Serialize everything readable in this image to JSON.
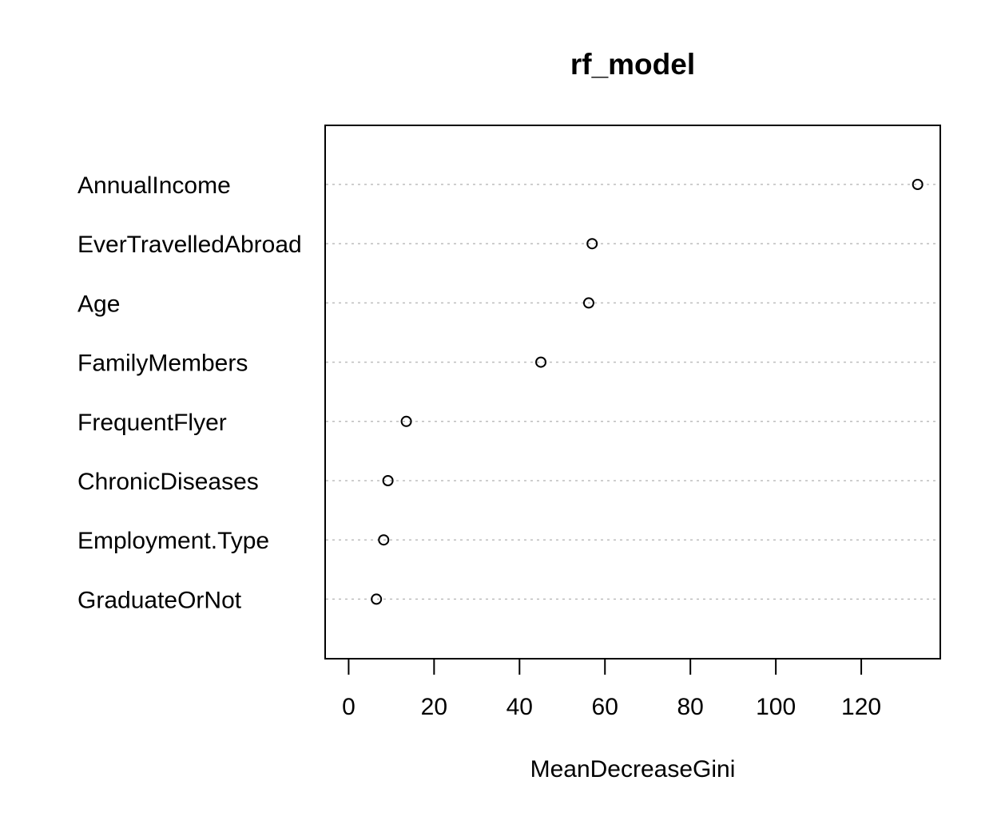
{
  "chart_data": {
    "type": "scatter",
    "subtype": "dotchart",
    "title": "rf_model",
    "xlabel": "MeanDecreaseGini",
    "ylabel": "",
    "xlim": [
      -5.5,
      138.5
    ],
    "xticks": [
      0,
      20,
      40,
      60,
      80,
      100,
      120
    ],
    "grid": "dotted horizontal guide lines",
    "legend": "none",
    "categories": [
      "AnnualIncome",
      "EverTravelledAbroad",
      "Age",
      "FamilyMembers",
      "FrequentFlyer",
      "ChronicDiseases",
      "Employment.Type",
      "GraduateOrNot"
    ],
    "values": [
      133.2,
      57.0,
      56.2,
      45.0,
      13.5,
      9.2,
      8.2,
      6.5
    ]
  }
}
